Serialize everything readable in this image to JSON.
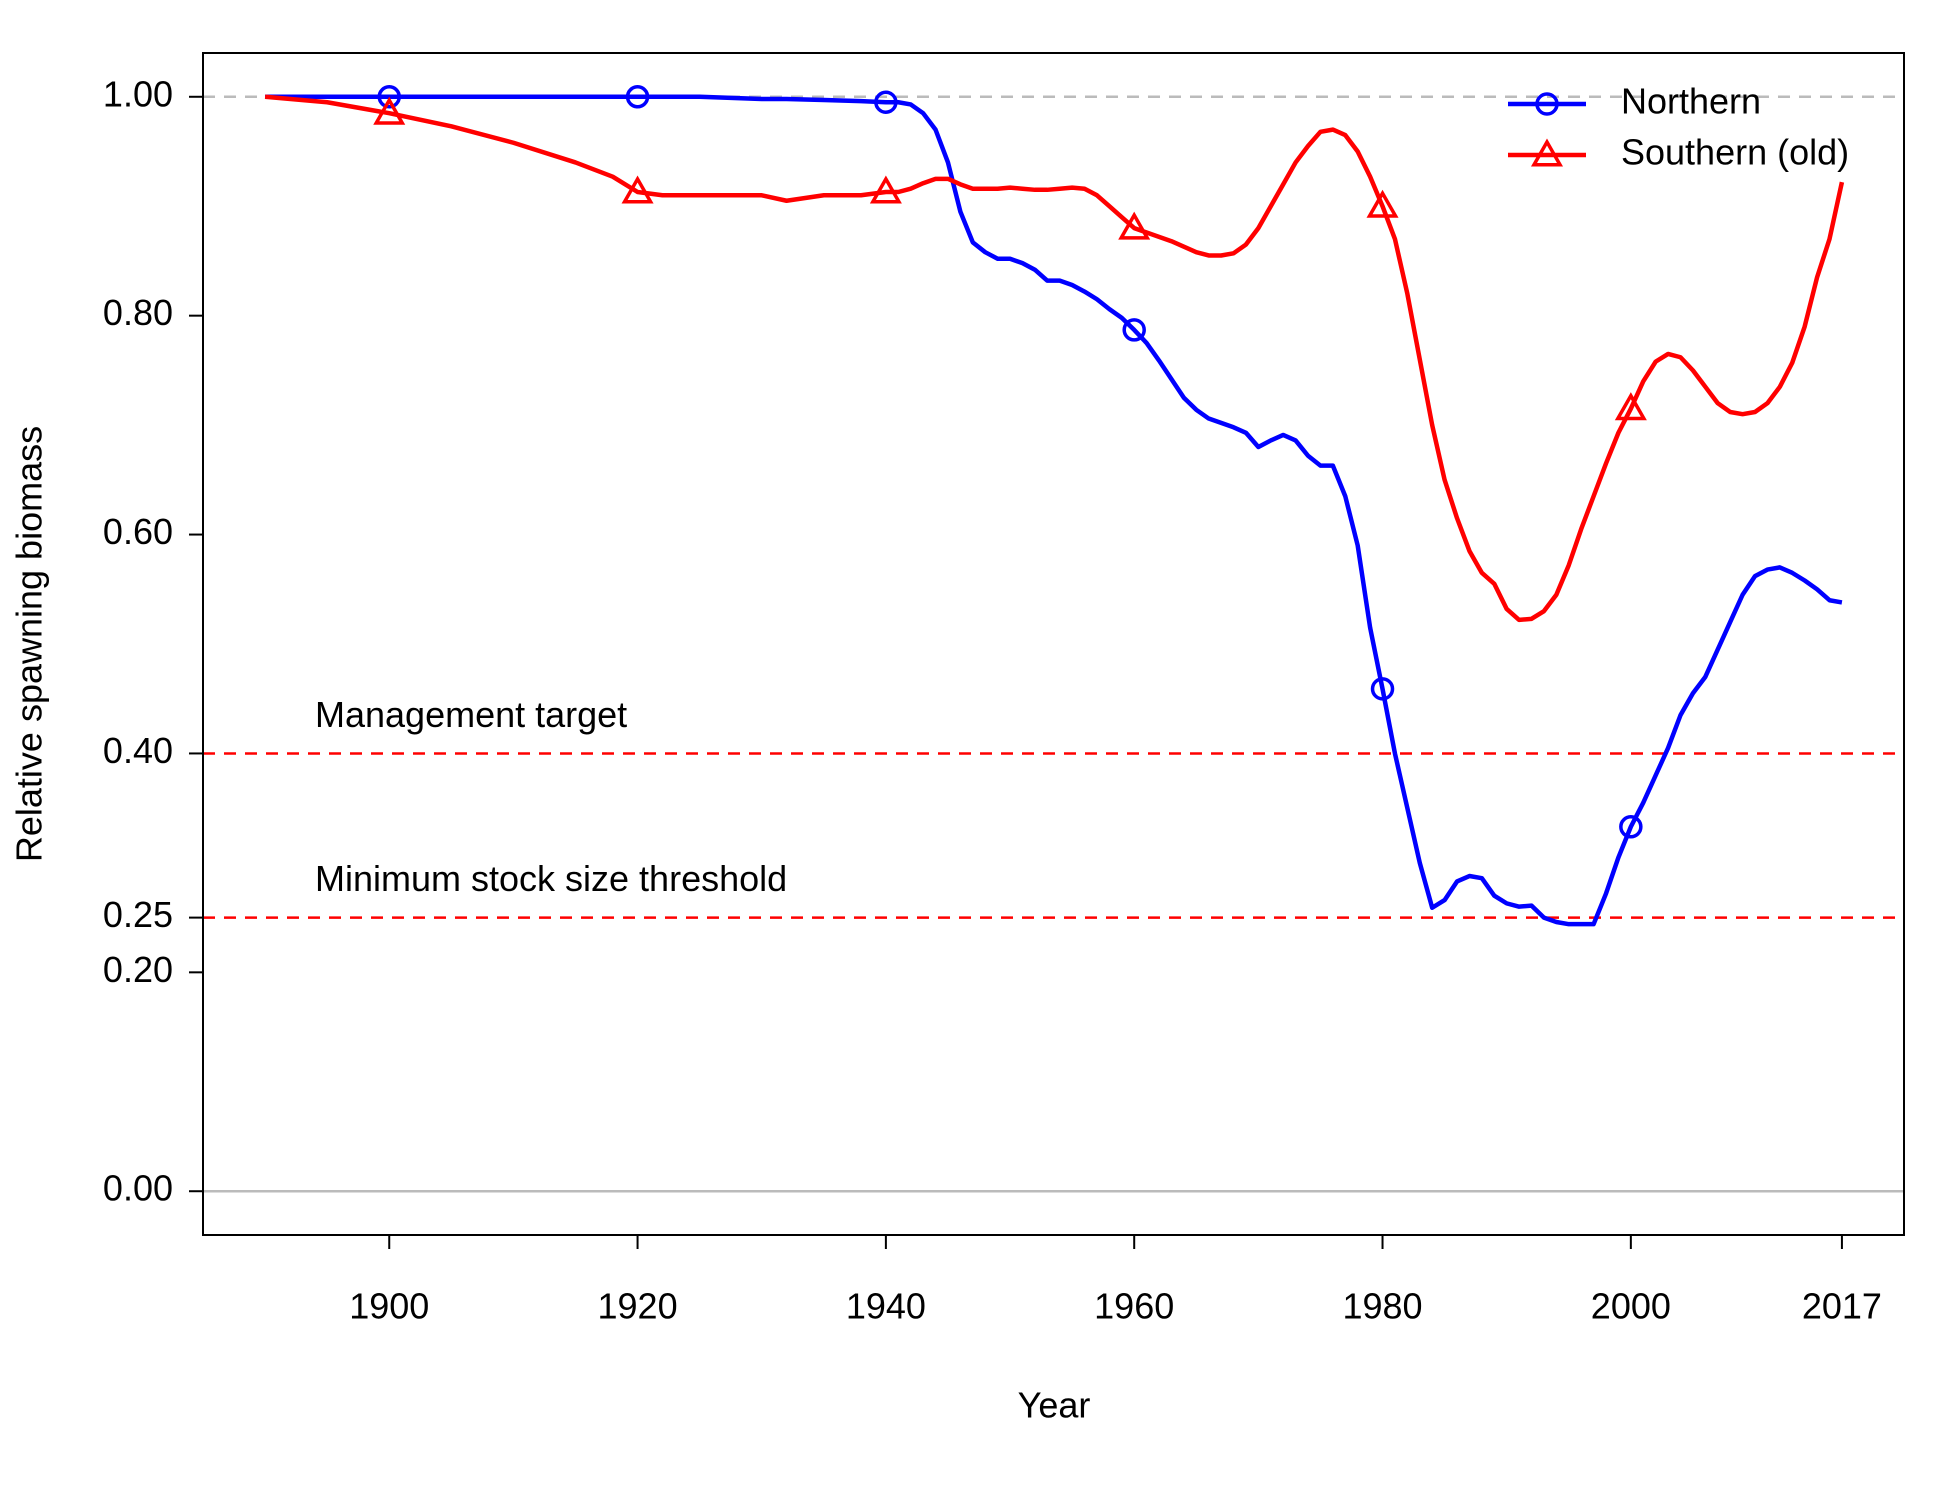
{
  "chart_data": {
    "type": "line",
    "x_label": "Year",
    "y_label": "Relative spawning biomass",
    "xlim": [
      1885,
      2022
    ],
    "ylim": [
      -0.04,
      1.04
    ],
    "xticks": [
      1900,
      1920,
      1940,
      1960,
      1980,
      2000,
      2017
    ],
    "yticks": [
      {
        "value": 0,
        "label": "0.00"
      },
      {
        "value": 0.2,
        "label": "0.20"
      },
      {
        "value": 0.25,
        "label": "0.25"
      },
      {
        "value": 0.4,
        "label": "0.40"
      },
      {
        "value": 0.6,
        "label": "0.60"
      },
      {
        "value": 0.8,
        "label": "0.80"
      },
      {
        "value": 1,
        "label": "1.00"
      }
    ],
    "legend_position": "top-right",
    "reference_lines": [
      {
        "value": 1,
        "color": "#bbbbbb",
        "style": "dashed"
      },
      {
        "value": 0.4,
        "label": "Management target",
        "color": "#ff0000",
        "style": "dashed"
      },
      {
        "value": 0.25,
        "label": "Minimum stock size threshold",
        "color": "#ff0000",
        "style": "dashed"
      },
      {
        "value": 0,
        "color": "#bbbbbb",
        "style": "solid"
      }
    ],
    "x": [
      1890,
      1895,
      1900,
      1905,
      1910,
      1915,
      1918,
      1920,
      1922,
      1925,
      1930,
      1932,
      1935,
      1938,
      1940,
      1941,
      1942,
      1943,
      1944,
      1945,
      1946,
      1947,
      1948,
      1949,
      1950,
      1951,
      1952,
      1953,
      1954,
      1955,
      1956,
      1957,
      1958,
      1959,
      1960,
      1961,
      1962,
      1963,
      1964,
      1965,
      1966,
      1967,
      1968,
      1969,
      1970,
      1971,
      1972,
      1973,
      1974,
      1975,
      1976,
      1977,
      1978,
      1979,
      1980,
      1981,
      1982,
      1983,
      1984,
      1985,
      1986,
      1987,
      1988,
      1989,
      1990,
      1991,
      1992,
      1993,
      1994,
      1995,
      1996,
      1997,
      1998,
      1999,
      2000,
      2001,
      2002,
      2003,
      2004,
      2005,
      2006,
      2007,
      2008,
      2009,
      2010,
      2011,
      2012,
      2013,
      2014,
      2015,
      2016,
      2017
    ],
    "series": [
      {
        "name": "Northern",
        "color": "#0000ff",
        "marker": "circle",
        "values": [
          1,
          1,
          1,
          1,
          1,
          1,
          1,
          1,
          1,
          1,
          0.998,
          0.998,
          0.997,
          0.996,
          0.995,
          0.995,
          0.993,
          0.985,
          0.97,
          0.94,
          0.895,
          0.867,
          0.858,
          0.852,
          0.852,
          0.848,
          0.842,
          0.832,
          0.832,
          0.828,
          0.822,
          0.815,
          0.806,
          0.798,
          0.787,
          0.775,
          0.759,
          0.742,
          0.725,
          0.714,
          0.706,
          0.702,
          0.698,
          0.693,
          0.68,
          0.686,
          0.691,
          0.686,
          0.672,
          0.663,
          0.663,
          0.635,
          0.59,
          0.515,
          0.459,
          0.4,
          0.35,
          0.3,
          0.259,
          0.266,
          0.283,
          0.288,
          0.286,
          0.27,
          0.263,
          0.26,
          0.261,
          0.25,
          0.246,
          0.244,
          0.244,
          0.244,
          0.272,
          0.305,
          0.333,
          0.355,
          0.38,
          0.405,
          0.435,
          0.455,
          0.47,
          0.495,
          0.52,
          0.545,
          0.562,
          0.568,
          0.57,
          0.565,
          0.558,
          0.55,
          0.54,
          0.538
        ]
      },
      {
        "name": "Southern (old)",
        "color": "#ff0000",
        "marker": "triangle",
        "values": [
          1,
          0.995,
          0.985,
          0.973,
          0.958,
          0.94,
          0.927,
          0.913,
          0.91,
          0.91,
          0.91,
          0.905,
          0.91,
          0.91,
          0.913,
          0.913,
          0.916,
          0.921,
          0.925,
          0.925,
          0.92,
          0.916,
          0.916,
          0.916,
          0.917,
          0.916,
          0.915,
          0.915,
          0.916,
          0.917,
          0.916,
          0.91,
          0.9,
          0.89,
          0.88,
          0.876,
          0.872,
          0.868,
          0.863,
          0.858,
          0.855,
          0.855,
          0.857,
          0.865,
          0.88,
          0.9,
          0.92,
          0.94,
          0.955,
          0.968,
          0.97,
          0.965,
          0.95,
          0.927,
          0.9,
          0.87,
          0.82,
          0.76,
          0.7,
          0.65,
          0.615,
          0.585,
          0.565,
          0.555,
          0.532,
          0.522,
          0.523,
          0.53,
          0.545,
          0.572,
          0.605,
          0.635,
          0.665,
          0.693,
          0.715,
          0.74,
          0.758,
          0.765,
          0.762,
          0.75,
          0.735,
          0.72,
          0.712,
          0.71,
          0.712,
          0.72,
          0.735,
          0.757,
          0.79,
          0.835,
          0.87,
          0.922
        ]
      }
    ]
  }
}
